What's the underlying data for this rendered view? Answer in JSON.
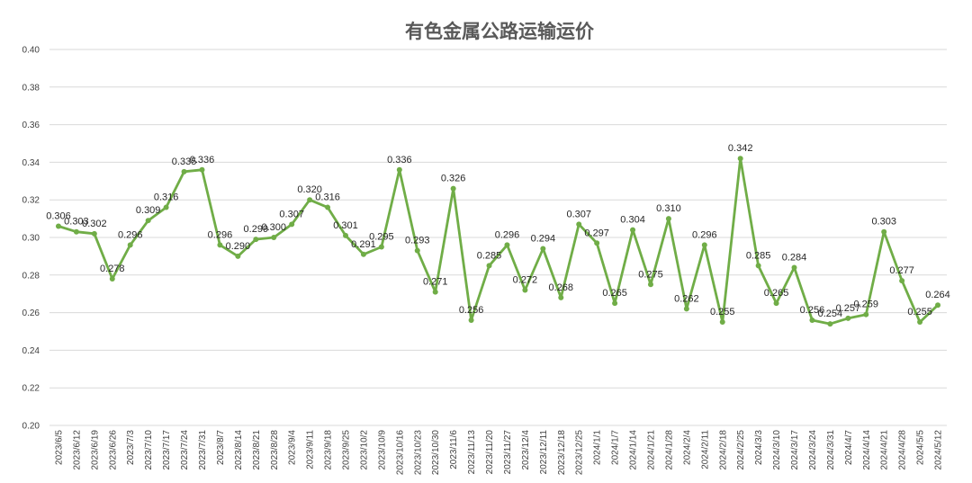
{
  "chart_data": {
    "type": "line",
    "title": "有色金属公路运输运价",
    "xlabel": "",
    "ylabel": "",
    "ylim": [
      0.2,
      0.4
    ],
    "yticks": [
      "0.20",
      "0.22",
      "0.24",
      "0.26",
      "0.28",
      "0.30",
      "0.32",
      "0.34",
      "0.36",
      "0.38",
      "0.40"
    ],
    "grid": true,
    "legend": "none",
    "line_color": "#70ad47",
    "categories": [
      "2023/6/5",
      "2023/6/12",
      "2023/6/19",
      "2023/6/26",
      "2023/7/3",
      "2023/7/10",
      "2023/7/17",
      "2023/7/24",
      "2023/7/31",
      "2023/8/7",
      "2023/8/14",
      "2023/8/21",
      "2023/8/28",
      "2023/9/4",
      "2023/9/11",
      "2023/9/18",
      "2023/9/25",
      "2023/10/2",
      "2023/10/9",
      "2023/10/16",
      "2023/10/23",
      "2023/10/30",
      "2023/11/6",
      "2023/11/13",
      "2023/11/20",
      "2023/11/27",
      "2023/12/4",
      "2023/12/11",
      "2023/12/18",
      "2023/12/25",
      "2024/1/1",
      "2024/1/7",
      "2024/1/14",
      "2024/1/21",
      "2024/1/28",
      "2024/2/4",
      "2024/2/11",
      "2024/2/18",
      "2024/2/25",
      "2024/3/3",
      "2024/3/10",
      "2024/3/17",
      "2024/3/24",
      "2024/3/31",
      "2024/4/7",
      "2024/4/14",
      "2024/4/21",
      "2024/4/28",
      "2024/5/5",
      "2024/5/12"
    ],
    "values": [
      0.306,
      0.303,
      0.302,
      0.278,
      0.296,
      0.309,
      0.316,
      0.335,
      0.336,
      0.296,
      0.29,
      0.299,
      0.3,
      0.307,
      0.32,
      0.316,
      0.301,
      0.291,
      0.295,
      0.336,
      0.293,
      0.271,
      0.326,
      0.256,
      0.285,
      0.296,
      0.272,
      0.294,
      0.268,
      0.307,
      0.297,
      0.265,
      0.304,
      0.275,
      0.31,
      0.262,
      0.296,
      0.255,
      0.342,
      0.285,
      0.265,
      0.284,
      0.256,
      0.254,
      0.257,
      0.259,
      0.303,
      0.277,
      0.255,
      0.264
    ],
    "data_labels": [
      "0.306",
      "0.303",
      "0.302",
      "0.278",
      "0.296",
      "0.309",
      "0.316",
      "0.335",
      "0.336",
      "0.296",
      "0.290",
      "0.299",
      "0.300",
      "0.307",
      "0.320",
      "0.316",
      "0.301",
      "0.291",
      "0.295",
      "0.336",
      "0.293",
      "0.271",
      "0.326",
      "0.256",
      "0.285",
      "0.296",
      "0.272",
      "0.294",
      "0.268",
      "0.307",
      "0.297",
      "0.265",
      "0.304",
      "0.275",
      "0.310",
      "0.262",
      "0.296",
      "0.255",
      "0.342",
      "0.285",
      "0.265",
      "0.284",
      "0.256",
      "0.254",
      "0.257",
      "0.259",
      "0.303",
      "0.277",
      "0.255",
      "0.264"
    ]
  }
}
